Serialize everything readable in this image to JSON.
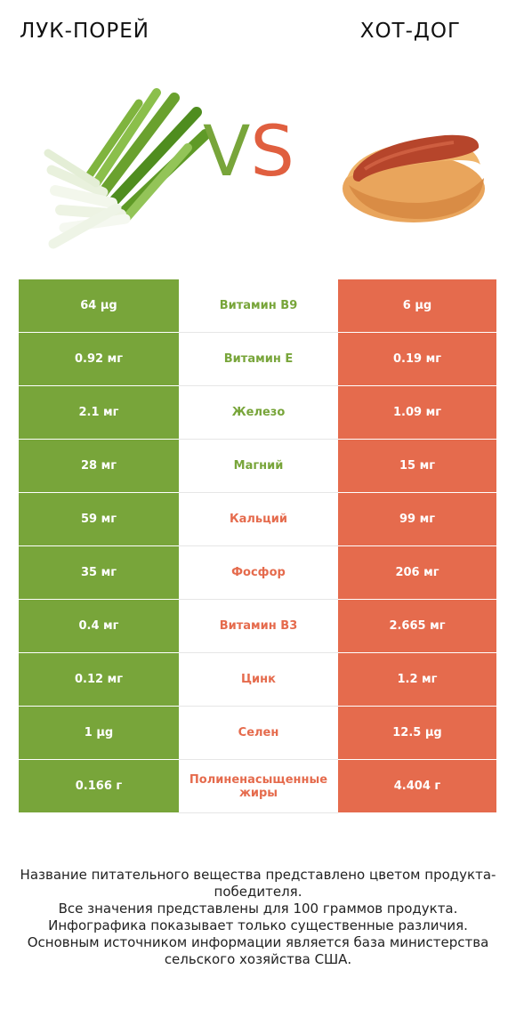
{
  "header": {
    "left_title": "ЛУК-ПОРЕЙ",
    "right_title": "ХОТ-ДОГ",
    "vs_v": "V",
    "vs_s": "S"
  },
  "colors": {
    "left_winner": "#78a53a",
    "right_winner": "#e56b4d"
  },
  "rows": [
    {
      "left": "64 µg",
      "nutrient": "Витамин B9",
      "right": "6 µg",
      "winner": "left"
    },
    {
      "left": "0.92 мг",
      "nutrient": "Витамин E",
      "right": "0.19 мг",
      "winner": "left"
    },
    {
      "left": "2.1 мг",
      "nutrient": "Железо",
      "right": "1.09 мг",
      "winner": "left"
    },
    {
      "left": "28 мг",
      "nutrient": "Магний",
      "right": "15 мг",
      "winner": "left"
    },
    {
      "left": "59 мг",
      "nutrient": "Кальций",
      "right": "99 мг",
      "winner": "right"
    },
    {
      "left": "35 мг",
      "nutrient": "Фосфор",
      "right": "206 мг",
      "winner": "right"
    },
    {
      "left": "0.4 мг",
      "nutrient": "Витамин B3",
      "right": "2.665 мг",
      "winner": "right"
    },
    {
      "left": "0.12 мг",
      "nutrient": "Цинк",
      "right": "1.2 мг",
      "winner": "right"
    },
    {
      "left": "1 µg",
      "nutrient": "Селен",
      "right": "12.5 µg",
      "winner": "right"
    },
    {
      "left": "0.166 г",
      "nutrient": "Полиненасыщенные жиры",
      "right": "4.404 г",
      "winner": "right"
    }
  ],
  "footer": {
    "line1": "Название питательного вещества представлено цветом продукта-победителя.",
    "line2": "Все значения представлены для 100 граммов продукта.",
    "line3": "Инфографика показывает только существенные различия.",
    "line4": "Основным источником информации является база министерства сельского хозяйства США."
  }
}
